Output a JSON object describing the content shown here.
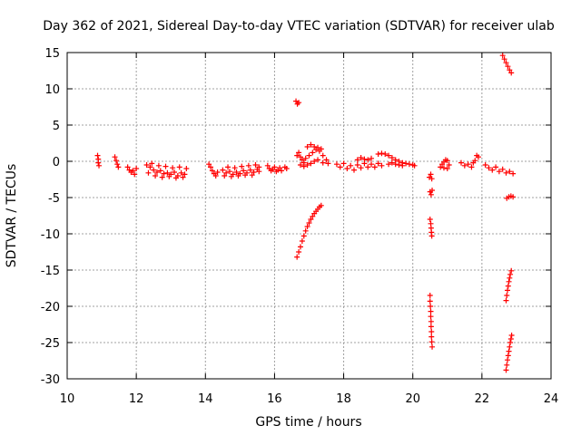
{
  "chart_data": {
    "type": "scatter",
    "title": "Day 362 of 2021, Sidereal Day-to-day VTEC variation (SDTVAR) for receiver ulab",
    "xlabel": "GPS time / hours",
    "ylabel": "SDTVAR / TECUs",
    "xlim": [
      10,
      24
    ],
    "ylim": [
      -30,
      15
    ],
    "x_ticks": [
      10,
      12,
      14,
      16,
      18,
      20,
      22,
      24
    ],
    "y_ticks": [
      -30,
      -25,
      -20,
      -15,
      -10,
      -5,
      0,
      5,
      10,
      15
    ],
    "grid": true,
    "marker": "+",
    "series": [
      {
        "name": "SDTVAR",
        "color": "#ff0000",
        "points": [
          [
            10.88,
            0.8
          ],
          [
            10.9,
            0.3
          ],
          [
            10.9,
            -0.2
          ],
          [
            10.92,
            -0.6
          ],
          [
            11.38,
            0.6
          ],
          [
            11.42,
            0.1
          ],
          [
            11.45,
            -0.4
          ],
          [
            11.48,
            -0.8
          ],
          [
            11.75,
            -0.8
          ],
          [
            11.8,
            -1.2
          ],
          [
            11.85,
            -1.5
          ],
          [
            11.9,
            -1.3
          ],
          [
            11.95,
            -1.8
          ],
          [
            12.0,
            -1.0
          ],
          [
            12.3,
            -0.5
          ],
          [
            12.4,
            -0.8
          ],
          [
            12.5,
            -1.2
          ],
          [
            12.6,
            -1.5
          ],
          [
            12.7,
            -1.3
          ],
          [
            12.8,
            -1.7
          ],
          [
            12.9,
            -1.6
          ],
          [
            13.0,
            -1.8
          ],
          [
            13.1,
            -1.5
          ],
          [
            13.2,
            -2.0
          ],
          [
            13.3,
            -1.6
          ],
          [
            13.4,
            -1.8
          ],
          [
            12.35,
            -1.6
          ],
          [
            12.55,
            -2.0
          ],
          [
            12.75,
            -2.2
          ],
          [
            12.95,
            -2.1
          ],
          [
            13.15,
            -2.3
          ],
          [
            13.35,
            -2.2
          ],
          [
            12.45,
            -0.3
          ],
          [
            12.65,
            -0.6
          ],
          [
            12.85,
            -0.7
          ],
          [
            13.05,
            -0.9
          ],
          [
            13.25,
            -0.8
          ],
          [
            13.45,
            -1.0
          ],
          [
            14.1,
            -0.4
          ],
          [
            14.15,
            -0.8
          ],
          [
            14.2,
            -1.3
          ],
          [
            14.25,
            -1.7
          ],
          [
            14.3,
            -2.0
          ],
          [
            14.35,
            -1.5
          ],
          [
            14.5,
            -1.2
          ],
          [
            14.6,
            -1.6
          ],
          [
            14.7,
            -1.4
          ],
          [
            14.8,
            -1.8
          ],
          [
            14.9,
            -1.5
          ],
          [
            15.0,
            -1.7
          ],
          [
            15.1,
            -1.3
          ],
          [
            15.2,
            -1.6
          ],
          [
            15.3,
            -1.2
          ],
          [
            15.4,
            -1.5
          ],
          [
            15.5,
            -1.1
          ],
          [
            15.55,
            -1.4
          ],
          [
            14.65,
            -0.8
          ],
          [
            14.85,
            -0.9
          ],
          [
            15.05,
            -0.7
          ],
          [
            15.25,
            -0.6
          ],
          [
            15.45,
            -0.5
          ],
          [
            15.55,
            -0.8
          ],
          [
            14.55,
            -2.0
          ],
          [
            14.75,
            -2.1
          ],
          [
            14.95,
            -2.0
          ],
          [
            15.15,
            -1.9
          ],
          [
            15.35,
            -1.9
          ],
          [
            15.8,
            -0.6
          ],
          [
            15.85,
            -1.0
          ],
          [
            15.9,
            -1.3
          ],
          [
            15.95,
            -1.1
          ],
          [
            16.0,
            -0.8
          ],
          [
            16.05,
            -1.4
          ],
          [
            16.1,
            -1.2
          ],
          [
            16.15,
            -0.9
          ],
          [
            16.2,
            -1.3
          ],
          [
            16.3,
            -0.8
          ],
          [
            16.35,
            -1.0
          ],
          [
            16.62,
            8.3
          ],
          [
            16.66,
            7.9
          ],
          [
            16.7,
            8.1
          ],
          [
            16.65,
            -13.2
          ],
          [
            16.7,
            -12.5
          ],
          [
            16.75,
            -11.8
          ],
          [
            16.8,
            -11.0
          ],
          [
            16.85,
            -10.3
          ],
          [
            16.9,
            -9.6
          ],
          [
            16.95,
            -9.0
          ],
          [
            17.0,
            -8.5
          ],
          [
            17.05,
            -8.0
          ],
          [
            17.1,
            -7.6
          ],
          [
            17.15,
            -7.2
          ],
          [
            17.2,
            -6.9
          ],
          [
            17.25,
            -6.6
          ],
          [
            17.3,
            -6.3
          ],
          [
            17.35,
            -6.1
          ],
          [
            16.65,
            0.8
          ],
          [
            16.7,
            1.2
          ],
          [
            16.75,
            0.6
          ],
          [
            16.8,
            0.2
          ],
          [
            16.85,
            -0.2
          ],
          [
            16.9,
            0.4
          ],
          [
            17.0,
            0.8
          ],
          [
            17.1,
            1.2
          ],
          [
            17.2,
            1.6
          ],
          [
            17.3,
            1.4
          ],
          [
            17.4,
            0.8
          ],
          [
            17.5,
            0.2
          ],
          [
            17.55,
            -0.3
          ],
          [
            16.95,
            2.0
          ],
          [
            17.05,
            2.3
          ],
          [
            17.15,
            2.0
          ],
          [
            17.25,
            1.9
          ],
          [
            17.35,
            1.7
          ],
          [
            16.75,
            -0.5
          ],
          [
            16.85,
            -0.7
          ],
          [
            16.95,
            -0.5
          ],
          [
            17.05,
            -0.3
          ],
          [
            17.15,
            0.0
          ],
          [
            17.25,
            0.2
          ],
          [
            17.4,
            -0.2
          ],
          [
            17.8,
            -0.4
          ],
          [
            17.9,
            -0.8
          ],
          [
            18.0,
            -0.3
          ],
          [
            18.1,
            -1.0
          ],
          [
            18.2,
            -0.6
          ],
          [
            18.3,
            -1.2
          ],
          [
            18.4,
            -0.5
          ],
          [
            18.5,
            -0.9
          ],
          [
            18.6,
            -0.3
          ],
          [
            18.7,
            -0.8
          ],
          [
            18.8,
            -0.4
          ],
          [
            18.9,
            -0.8
          ],
          [
            19.0,
            -0.3
          ],
          [
            19.1,
            -0.6
          ],
          [
            18.4,
            0.2
          ],
          [
            18.5,
            0.5
          ],
          [
            18.6,
            0.3
          ],
          [
            18.7,
            0.2
          ],
          [
            18.8,
            0.4
          ],
          [
            19.0,
            1.0
          ],
          [
            19.1,
            1.1
          ],
          [
            19.2,
            1.0
          ],
          [
            19.3,
            0.8
          ],
          [
            19.4,
            0.5
          ],
          [
            19.5,
            0.2
          ],
          [
            19.6,
            0.0
          ],
          [
            19.7,
            -0.2
          ],
          [
            19.8,
            -0.3
          ],
          [
            19.9,
            -0.4
          ],
          [
            20.0,
            -0.5
          ],
          [
            20.05,
            -0.6
          ],
          [
            19.3,
            -0.4
          ],
          [
            19.4,
            -0.2
          ],
          [
            19.5,
            -0.4
          ],
          [
            19.6,
            -0.5
          ],
          [
            19.7,
            -0.6
          ],
          [
            20.48,
            -2.2
          ],
          [
            20.52,
            -1.8
          ],
          [
            20.55,
            -2.4
          ],
          [
            20.5,
            -4.2
          ],
          [
            20.53,
            -4.6
          ],
          [
            20.56,
            -4.0
          ],
          [
            20.5,
            -8.0
          ],
          [
            20.52,
            -8.6
          ],
          [
            20.53,
            -9.2
          ],
          [
            20.54,
            -9.8
          ],
          [
            20.55,
            -10.3
          ],
          [
            20.5,
            -18.5
          ],
          [
            20.5,
            -19.3
          ],
          [
            20.51,
            -20.0
          ],
          [
            20.52,
            -20.7
          ],
          [
            20.52,
            -21.4
          ],
          [
            20.53,
            -22.1
          ],
          [
            20.53,
            -22.8
          ],
          [
            20.54,
            -23.5
          ],
          [
            20.54,
            -24.2
          ],
          [
            20.55,
            -24.9
          ],
          [
            20.56,
            -25.6
          ],
          [
            20.8,
            -0.8
          ],
          [
            20.85,
            -0.4
          ],
          [
            20.9,
            -0.1
          ],
          [
            20.95,
            0.2
          ],
          [
            21.0,
            0.1
          ],
          [
            21.05,
            -0.5
          ],
          [
            20.9,
            -0.9
          ],
          [
            21.0,
            -1.0
          ],
          [
            21.4,
            -0.2
          ],
          [
            21.5,
            -0.6
          ],
          [
            21.6,
            -0.4
          ],
          [
            21.7,
            -0.8
          ],
          [
            21.8,
            0.1
          ],
          [
            21.85,
            0.8
          ],
          [
            21.9,
            0.6
          ],
          [
            21.75,
            -0.2
          ],
          [
            22.1,
            -0.5
          ],
          [
            22.2,
            -0.9
          ],
          [
            22.3,
            -1.2
          ],
          [
            22.4,
            -0.8
          ],
          [
            22.5,
            -1.4
          ],
          [
            22.6,
            -1.1
          ],
          [
            22.7,
            -1.6
          ],
          [
            22.8,
            -1.4
          ],
          [
            22.9,
            -1.7
          ],
          [
            22.6,
            14.6
          ],
          [
            22.65,
            14.1
          ],
          [
            22.7,
            13.6
          ],
          [
            22.75,
            13.1
          ],
          [
            22.8,
            12.6
          ],
          [
            22.85,
            12.2
          ],
          [
            22.72,
            -5.1
          ],
          [
            22.78,
            -4.9
          ],
          [
            22.84,
            -4.8
          ],
          [
            22.9,
            -4.9
          ],
          [
            22.7,
            -19.2
          ],
          [
            22.72,
            -18.5
          ],
          [
            22.74,
            -17.8
          ],
          [
            22.76,
            -17.2
          ],
          [
            22.78,
            -16.6
          ],
          [
            22.8,
            -16.1
          ],
          [
            22.82,
            -15.6
          ],
          [
            22.85,
            -15.1
          ],
          [
            22.7,
            -28.8
          ],
          [
            22.72,
            -28.1
          ],
          [
            22.74,
            -27.4
          ],
          [
            22.76,
            -26.8
          ],
          [
            22.78,
            -26.2
          ],
          [
            22.8,
            -25.6
          ],
          [
            22.82,
            -25.0
          ],
          [
            22.84,
            -24.5
          ],
          [
            22.86,
            -24.0
          ]
        ]
      }
    ]
  }
}
